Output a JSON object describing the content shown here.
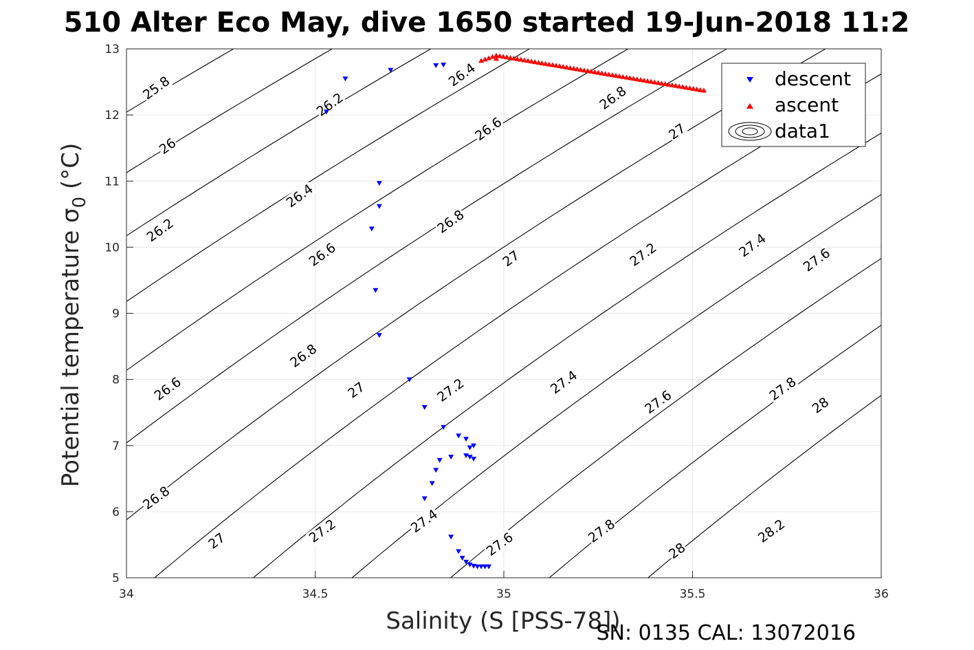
{
  "chart_data": {
    "type": "scatter",
    "title": "510 Alter Eco May, dive 1650 started 19-Jun-2018 11:2",
    "xlabel": "Salinity (S [PSS-78])",
    "ylabel_main": "Potential temperature ",
    "ylabel_sigma": "σ",
    "ylabel_sub": "0",
    "ylabel_unit": " (°C)",
    "xlim": [
      34,
      36
    ],
    "ylim": [
      5,
      13
    ],
    "xticks": [
      34,
      34.5,
      35,
      35.5,
      36
    ],
    "yticks": [
      5,
      6,
      7,
      8,
      9,
      10,
      11,
      12,
      13
    ],
    "grid": true,
    "legend_placement": "top-right",
    "footer": "SN: 0135  CAL: 13072016",
    "legend": [
      {
        "label": "descent",
        "color": "#0000ff",
        "marker": "triangle-down"
      },
      {
        "label": "ascent",
        "color": "#ff0000",
        "marker": "triangle-up"
      },
      {
        "label": "data1",
        "color": "#000000",
        "marker": "contour"
      }
    ],
    "series": [
      {
        "name": "descent",
        "color": "#0000ff",
        "marker": "triangle-down",
        "points": [
          [
            34.53,
            12.05
          ],
          [
            34.58,
            12.55
          ],
          [
            34.7,
            12.68
          ],
          [
            34.82,
            12.75
          ],
          [
            34.84,
            12.76
          ],
          [
            34.67,
            10.97
          ],
          [
            34.67,
            10.62
          ],
          [
            34.65,
            10.28
          ],
          [
            34.66,
            9.35
          ],
          [
            34.67,
            8.67
          ],
          [
            34.75,
            8.0
          ],
          [
            34.79,
            7.58
          ],
          [
            34.84,
            7.28
          ],
          [
            34.88,
            7.15
          ],
          [
            34.9,
            7.1
          ],
          [
            34.92,
            7.0
          ],
          [
            34.91,
            6.97
          ],
          [
            34.86,
            6.83
          ],
          [
            34.9,
            6.85
          ],
          [
            34.91,
            6.83
          ],
          [
            34.92,
            6.8
          ],
          [
            34.83,
            6.78
          ],
          [
            34.82,
            6.63
          ],
          [
            34.81,
            6.43
          ],
          [
            34.79,
            6.2
          ],
          [
            34.86,
            5.62
          ],
          [
            34.88,
            5.4
          ],
          [
            34.89,
            5.3
          ],
          [
            34.9,
            5.24
          ],
          [
            34.91,
            5.2
          ],
          [
            34.92,
            5.18
          ],
          [
            34.93,
            5.17
          ],
          [
            34.94,
            5.17
          ],
          [
            34.95,
            5.17
          ],
          [
            34.96,
            5.17
          ]
        ]
      },
      {
        "name": "ascent",
        "color": "#ff0000",
        "marker": "triangle-up",
        "segment": {
          "from": [
            34.98,
            12.9
          ],
          "to": [
            35.53,
            12.37
          ],
          "count": 60
        },
        "points": [
          [
            34.94,
            12.82
          ],
          [
            34.95,
            12.84
          ],
          [
            34.96,
            12.86
          ],
          [
            34.97,
            12.88
          ],
          [
            34.98,
            12.85
          ]
        ]
      }
    ],
    "isopycnals": [
      25.8,
      26.0,
      26.2,
      26.4,
      26.6,
      26.8,
      27.0,
      27.2,
      27.4,
      27.6,
      27.8,
      28.0,
      28.2
    ],
    "contour_labels": [
      {
        "text": "25.8",
        "at": [
          34.08,
          12.4
        ]
      },
      {
        "text": "26.2",
        "at": [
          34.54,
          12.15
        ]
      },
      {
        "text": "26.4",
        "at": [
          34.89,
          12.6
        ]
      },
      {
        "text": "26",
        "at": [
          34.11,
          11.52
        ]
      },
      {
        "text": "26.6",
        "at": [
          34.96,
          11.78
        ]
      },
      {
        "text": "26.8",
        "at": [
          35.29,
          12.25
        ]
      },
      {
        "text": "27",
        "at": [
          35.46,
          11.74
        ]
      },
      {
        "text": "26.4",
        "at": [
          34.46,
          10.77
        ]
      },
      {
        "text": "26.2",
        "at": [
          34.09,
          10.25
        ]
      },
      {
        "text": "26.8",
        "at": [
          34.86,
          10.38
        ]
      },
      {
        "text": "26.6",
        "at": [
          34.52,
          9.88
        ]
      },
      {
        "text": "27",
        "at": [
          35.02,
          9.82
        ]
      },
      {
        "text": "27.2",
        "at": [
          35.37,
          9.88
        ]
      },
      {
        "text": "27.4",
        "at": [
          35.66,
          10.02
        ]
      },
      {
        "text": "27.6",
        "at": [
          35.83,
          9.8
        ]
      },
      {
        "text": "26.8",
        "at": [
          34.47,
          8.35
        ]
      },
      {
        "text": "26.6",
        "at": [
          34.11,
          7.85
        ]
      },
      {
        "text": "27",
        "at": [
          34.61,
          7.83
        ]
      },
      {
        "text": "27.2",
        "at": [
          34.86,
          7.83
        ]
      },
      {
        "text": "27.4",
        "at": [
          35.16,
          7.95
        ]
      },
      {
        "text": "27.6",
        "at": [
          35.41,
          7.65
        ]
      },
      {
        "text": "27.8",
        "at": [
          35.74,
          7.85
        ]
      },
      {
        "text": "28",
        "at": [
          35.84,
          7.6
        ]
      },
      {
        "text": "26.8",
        "at": [
          34.08,
          6.2
        ]
      },
      {
        "text": "27",
        "at": [
          34.24,
          5.55
        ]
      },
      {
        "text": "27.2",
        "at": [
          34.52,
          5.7
        ]
      },
      {
        "text": "27.4",
        "at": [
          34.79,
          5.85
        ]
      },
      {
        "text": "27.6",
        "at": [
          34.99,
          5.5
        ]
      },
      {
        "text": "27.8",
        "at": [
          35.26,
          5.7
        ]
      },
      {
        "text": "28",
        "at": [
          35.46,
          5.4
        ]
      },
      {
        "text": "28.2",
        "at": [
          35.71,
          5.7
        ]
      }
    ]
  }
}
